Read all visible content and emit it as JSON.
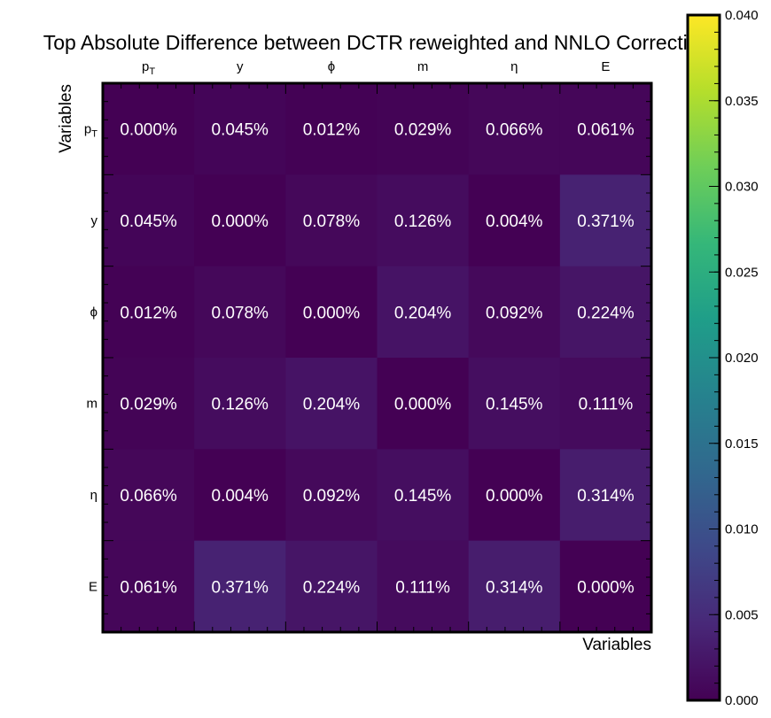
{
  "chart_data": {
    "type": "heatmap",
    "title": "Top Absolute Difference between DCTR reweighted and NNLO Correction",
    "xlabel": "Variables",
    "ylabel": "Variables",
    "x_categories": [
      "p_T",
      "y",
      "ϕ",
      "m",
      "η",
      "E"
    ],
    "y_categories": [
      "p_T",
      "y",
      "ϕ",
      "m",
      "η",
      "E"
    ],
    "values": [
      [
        0.0,
        0.00045,
        0.00012,
        0.00029,
        0.00066,
        0.00061
      ],
      [
        0.00045,
        0.0,
        0.00078,
        0.00126,
        4e-05,
        0.00371
      ],
      [
        0.00012,
        0.00078,
        0.0,
        0.00204,
        0.00092,
        0.00224
      ],
      [
        0.00029,
        0.00126,
        0.00204,
        0.0,
        0.00145,
        0.00111
      ],
      [
        0.00066,
        4e-05,
        0.00092,
        0.00145,
        0.0,
        0.00314
      ],
      [
        0.00061,
        0.00371,
        0.00224,
        0.00111,
        0.00314,
        0.0
      ]
    ],
    "cell_labels": [
      [
        "0.000%",
        "0.045%",
        "0.012%",
        "0.029%",
        "0.066%",
        "0.061%"
      ],
      [
        "0.045%",
        "0.000%",
        "0.078%",
        "0.126%",
        "0.004%",
        "0.371%"
      ],
      [
        "0.012%",
        "0.078%",
        "0.000%",
        "0.204%",
        "0.092%",
        "0.224%"
      ],
      [
        "0.029%",
        "0.126%",
        "0.204%",
        "0.000%",
        "0.145%",
        "0.111%"
      ],
      [
        "0.066%",
        "0.004%",
        "0.092%",
        "0.145%",
        "0.000%",
        "0.314%"
      ],
      [
        "0.061%",
        "0.371%",
        "0.224%",
        "0.111%",
        "0.314%",
        "0.000%"
      ]
    ],
    "colorbar": {
      "colormap": "viridis",
      "range": [
        0.0,
        0.04
      ],
      "ticks": [
        0.0,
        0.005,
        0.01,
        0.015,
        0.02,
        0.025,
        0.03,
        0.035,
        0.04
      ],
      "tick_labels": [
        "0.000",
        "0.005",
        "0.010",
        "0.015",
        "0.020",
        "0.025",
        "0.030",
        "0.035",
        "0.040"
      ]
    },
    "x_axis_position": "top",
    "grid": false
  }
}
